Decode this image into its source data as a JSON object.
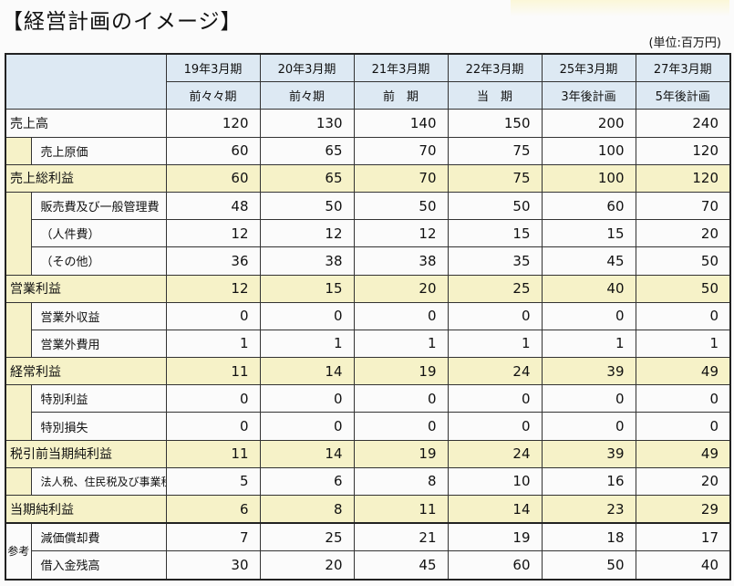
{
  "title": "【経営計画のイメージ】",
  "unit": "(単位:百万円)",
  "periods": [
    {
      "year": "19年3月期",
      "label": "前々々期"
    },
    {
      "year": "20年3月期",
      "label": "前々期"
    },
    {
      "year": "21年3月期",
      "label": "前　期"
    },
    {
      "year": "22年3月期",
      "label": "当　期"
    },
    {
      "year": "25年3月期",
      "label": "3年後計画"
    },
    {
      "year": "27年3月期",
      "label": "5年後計画"
    }
  ],
  "rows": [
    {
      "label": "売上高",
      "values": [
        "120",
        "130",
        "140",
        "150",
        "200",
        "240"
      ]
    },
    {
      "label": "売上原価",
      "values": [
        "60",
        "65",
        "70",
        "75",
        "100",
        "120"
      ]
    },
    {
      "label": "売上総利益",
      "values": [
        "60",
        "65",
        "70",
        "75",
        "100",
        "120"
      ]
    },
    {
      "label": "販売費及び一般管理費",
      "values": [
        "48",
        "50",
        "50",
        "50",
        "60",
        "70"
      ]
    },
    {
      "label": "（人件費）",
      "values": [
        "12",
        "12",
        "12",
        "15",
        "15",
        "20"
      ]
    },
    {
      "label": "（その他）",
      "values": [
        "36",
        "38",
        "38",
        "35",
        "45",
        "50"
      ]
    },
    {
      "label": "営業利益",
      "values": [
        "12",
        "15",
        "20",
        "25",
        "40",
        "50"
      ]
    },
    {
      "label": "営業外収益",
      "values": [
        "0",
        "0",
        "0",
        "0",
        "0",
        "0"
      ]
    },
    {
      "label": "営業外費用",
      "values": [
        "1",
        "1",
        "1",
        "1",
        "1",
        "1"
      ]
    },
    {
      "label": "経常利益",
      "values": [
        "11",
        "14",
        "19",
        "24",
        "39",
        "49"
      ]
    },
    {
      "label": "特別利益",
      "values": [
        "0",
        "0",
        "0",
        "0",
        "0",
        "0"
      ]
    },
    {
      "label": "特別損失",
      "values": [
        "0",
        "0",
        "0",
        "0",
        "0",
        "0"
      ]
    },
    {
      "label": "税引前当期純利益",
      "values": [
        "11",
        "14",
        "19",
        "24",
        "39",
        "49"
      ]
    },
    {
      "label": "法人税、住民税及び事業税",
      "values": [
        "5",
        "6",
        "8",
        "10",
        "16",
        "20"
      ]
    },
    {
      "label": "当期純利益",
      "values": [
        "6",
        "8",
        "11",
        "14",
        "23",
        "29"
      ]
    }
  ],
  "reference": {
    "label": "参考",
    "rows": [
      {
        "label": "減価償却費",
        "values": [
          "7",
          "25",
          "21",
          "19",
          "18",
          "17"
        ]
      },
      {
        "label": "借入金残高",
        "values": [
          "30",
          "20",
          "45",
          "60",
          "50",
          "40"
        ]
      }
    ]
  }
}
